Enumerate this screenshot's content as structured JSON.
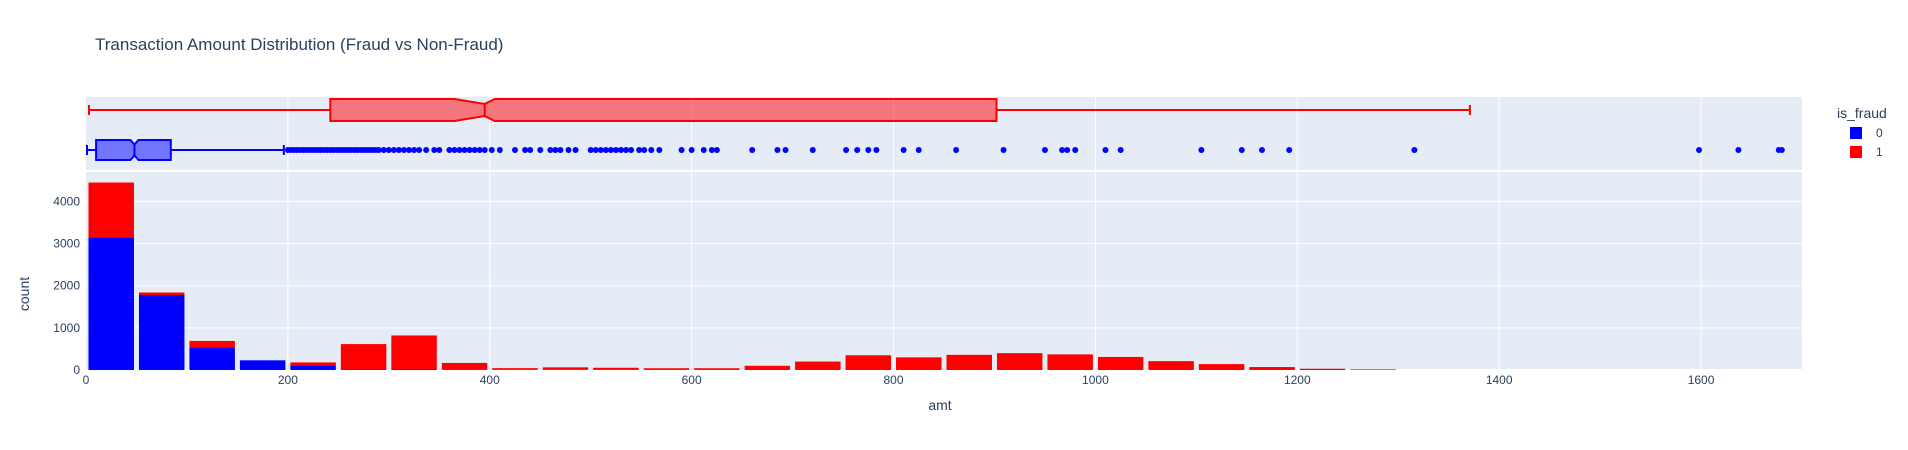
{
  "chart_data": {
    "type": "bar",
    "title": "Transaction Amount Distribution (Fraud vs Non-Fraud)",
    "xlabel": "amt",
    "ylabel": "count",
    "barmode": "stack",
    "xlim": [
      0,
      1700
    ],
    "ylim": [
      0,
      4700
    ],
    "xticks": [
      0,
      200,
      400,
      600,
      800,
      1000,
      1200,
      1400,
      1600
    ],
    "yticks": [
      0,
      1000,
      2000,
      3000,
      4000
    ],
    "grid": true,
    "legend": {
      "title": "is_fraud",
      "position": "top-right",
      "entries": [
        "0",
        "1"
      ]
    },
    "colors": {
      "0": "#0000ff",
      "1": "#ff0000",
      "plot_bg": "#e5ecf6"
    },
    "bins": {
      "start": 0,
      "width": 50
    },
    "series": [
      {
        "name": "0",
        "values": [
          3150,
          1780,
          540,
          230,
          110,
          15,
          20,
          8,
          4,
          3,
          3,
          2,
          2,
          0,
          0,
          0,
          0,
          0,
          0,
          0,
          0,
          0,
          0,
          0,
          0,
          0,
          0,
          0,
          0,
          0,
          0,
          0,
          0,
          0
        ]
      },
      {
        "name": "1",
        "values": [
          1300,
          60,
          150,
          0,
          70,
          600,
          800,
          160,
          40,
          60,
          50,
          40,
          40,
          100,
          200,
          350,
          300,
          360,
          400,
          370,
          310,
          210,
          140,
          70,
          30,
          15,
          0,
          0,
          0,
          0,
          0,
          0,
          0,
          0
        ]
      }
    ],
    "boxplots": [
      {
        "name": "1",
        "min": 3,
        "q1": 242,
        "median": 395,
        "q3": 902,
        "max": 1371,
        "notch": [
          365,
          405
        ],
        "outliers": []
      },
      {
        "name": "0",
        "min": 1,
        "q1": 10,
        "median": 48,
        "q3": 84,
        "max": 196,
        "notch": [
          44,
          52
        ],
        "outliers": [
          200,
          203,
          206,
          209,
          212,
          215,
          218,
          221,
          224,
          227,
          230,
          233,
          236,
          239,
          242,
          245,
          248,
          251,
          254,
          257,
          260,
          263,
          266,
          269,
          272,
          275,
          278,
          281,
          284,
          287,
          290,
          295,
          300,
          305,
          310,
          315,
          320,
          325,
          330,
          337,
          345,
          350,
          360,
          365,
          370,
          375,
          380,
          385,
          390,
          395,
          402,
          410,
          425,
          435,
          440,
          450,
          460,
          465,
          470,
          478,
          485,
          500,
          505,
          510,
          515,
          520,
          525,
          530,
          535,
          540,
          548,
          553,
          560,
          568,
          590,
          600,
          612,
          620,
          625,
          660,
          685,
          693,
          720,
          753,
          764,
          775,
          783,
          810,
          825,
          862,
          909,
          950,
          967,
          972,
          980,
          1010,
          1025,
          1105,
          1145,
          1165,
          1192,
          1316,
          1598,
          1637,
          1677,
          1680
        ]
      }
    ]
  }
}
